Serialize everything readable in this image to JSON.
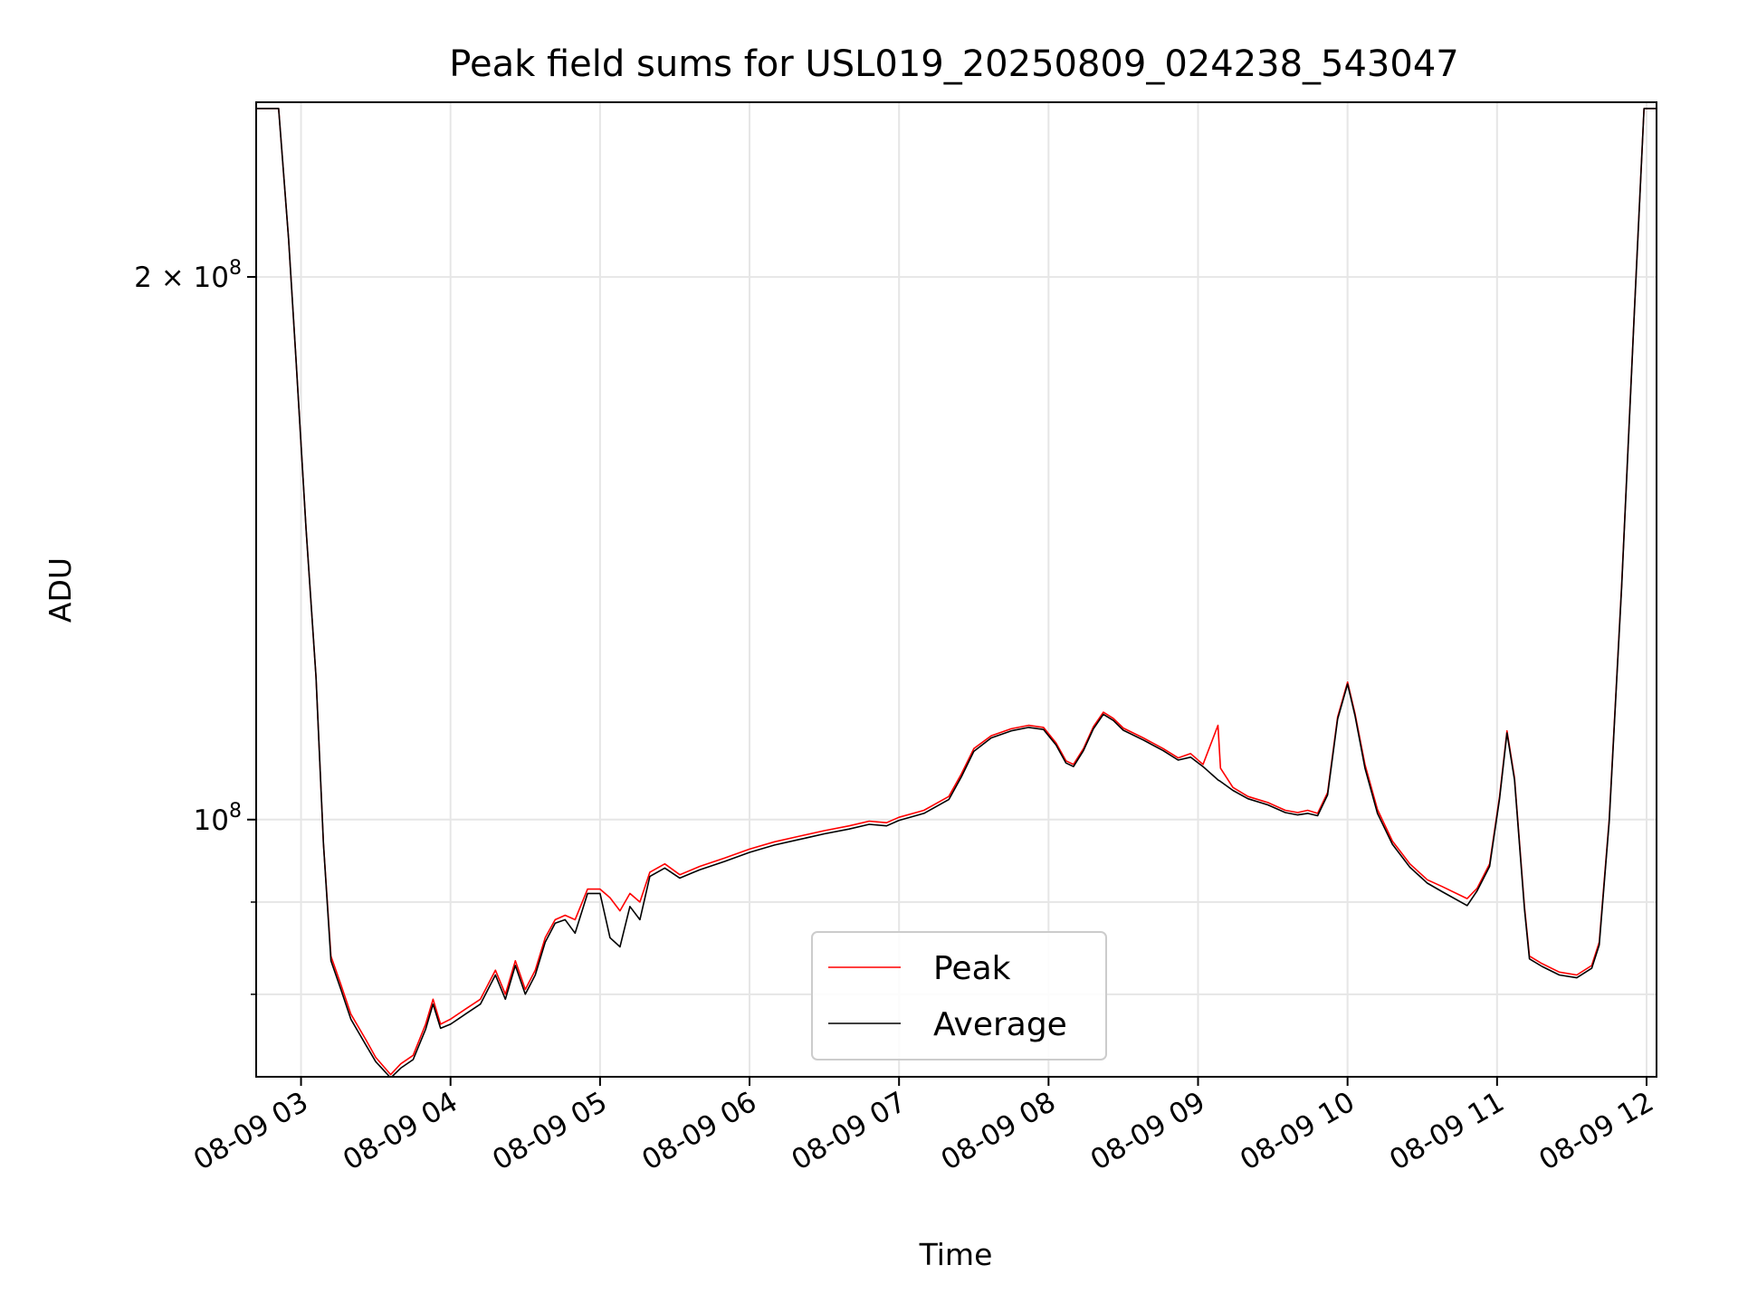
{
  "chart_data": {
    "type": "line",
    "title": "Peak field sums for USL019_20250809_024238_543047",
    "xlabel": "Time",
    "ylabel": "ADU",
    "yscale": "log",
    "grid": true,
    "legend_position": "lower-center",
    "xlim": [
      "2025-08-09 02:42",
      "2025-08-09 12:04"
    ],
    "ylim": [
      72000000,
      250000000
    ],
    "x_ticks": [
      "08-09 03",
      "08-09 04",
      "08-09 05",
      "08-09 06",
      "08-09 07",
      "08-09 08",
      "08-09 09",
      "08-09 10",
      "08-09 11",
      "08-09 12"
    ],
    "y_tick_labels": [
      {
        "value": 200000000,
        "base": "2 × 10",
        "exp": "8"
      },
      {
        "value": 100000000,
        "base": "10",
        "exp": "8"
      }
    ],
    "y_minor_ticks": [
      80000000,
      90000000
    ],
    "series": [
      {
        "name": "Peak",
        "color": "#ff0000",
        "points": [
          [
            "2025-08-09 02:42",
            248000000
          ],
          [
            "2025-08-09 02:51",
            248000000
          ],
          [
            "2025-08-09 02:55",
            210000000
          ],
          [
            "2025-08-09 02:58",
            180000000
          ],
          [
            "2025-08-09 03:02",
            145000000
          ],
          [
            "2025-08-09 03:06",
            120000000
          ],
          [
            "2025-08-09 03:09",
            97000000
          ],
          [
            "2025-08-09 03:12",
            84000000
          ],
          [
            "2025-08-09 03:16",
            81000000
          ],
          [
            "2025-08-09 03:20",
            78000000
          ],
          [
            "2025-08-09 03:26",
            75500000
          ],
          [
            "2025-08-09 03:30",
            73800000
          ],
          [
            "2025-08-09 03:36",
            72200000
          ],
          [
            "2025-08-09 03:40",
            73200000
          ],
          [
            "2025-08-09 03:45",
            74000000
          ],
          [
            "2025-08-09 03:50",
            77000000
          ],
          [
            "2025-08-09 03:53",
            79500000
          ],
          [
            "2025-08-09 03:56",
            77000000
          ],
          [
            "2025-08-09 04:00",
            77500000
          ],
          [
            "2025-08-09 04:06",
            78500000
          ],
          [
            "2025-08-09 04:12",
            79500000
          ],
          [
            "2025-08-09 04:18",
            82500000
          ],
          [
            "2025-08-09 04:22",
            80000000
          ],
          [
            "2025-08-09 04:26",
            83500000
          ],
          [
            "2025-08-09 04:30",
            80500000
          ],
          [
            "2025-08-09 04:34",
            82500000
          ],
          [
            "2025-08-09 04:38",
            86000000
          ],
          [
            "2025-08-09 04:42",
            88000000
          ],
          [
            "2025-08-09 04:46",
            88500000
          ],
          [
            "2025-08-09 04:50",
            88000000
          ],
          [
            "2025-08-09 04:55",
            91500000
          ],
          [
            "2025-08-09 05:00",
            91500000
          ],
          [
            "2025-08-09 05:04",
            90500000
          ],
          [
            "2025-08-09 05:08",
            89000000
          ],
          [
            "2025-08-09 05:12",
            91000000
          ],
          [
            "2025-08-09 05:16",
            90000000
          ],
          [
            "2025-08-09 05:20",
            93500000
          ],
          [
            "2025-08-09 05:26",
            94500000
          ],
          [
            "2025-08-09 05:32",
            93200000
          ],
          [
            "2025-08-09 05:40",
            94200000
          ],
          [
            "2025-08-09 05:50",
            95200000
          ],
          [
            "2025-08-09 06:00",
            96300000
          ],
          [
            "2025-08-09 06:10",
            97200000
          ],
          [
            "2025-08-09 06:20",
            97900000
          ],
          [
            "2025-08-09 06:30",
            98600000
          ],
          [
            "2025-08-09 06:40",
            99200000
          ],
          [
            "2025-08-09 06:48",
            99800000
          ],
          [
            "2025-08-09 06:55",
            99600000
          ],
          [
            "2025-08-09 07:00",
            100300000
          ],
          [
            "2025-08-09 07:10",
            101200000
          ],
          [
            "2025-08-09 07:20",
            103000000
          ],
          [
            "2025-08-09 07:25",
            106000000
          ],
          [
            "2025-08-09 07:30",
            109500000
          ],
          [
            "2025-08-09 07:37",
            111300000
          ],
          [
            "2025-08-09 07:45",
            112300000
          ],
          [
            "2025-08-09 07:52",
            112800000
          ],
          [
            "2025-08-09 07:58",
            112500000
          ],
          [
            "2025-08-09 08:03",
            110300000
          ],
          [
            "2025-08-09 08:07",
            107800000
          ],
          [
            "2025-08-09 08:10",
            107300000
          ],
          [
            "2025-08-09 08:14",
            109500000
          ],
          [
            "2025-08-09 08:18",
            112600000
          ],
          [
            "2025-08-09 08:22",
            114700000
          ],
          [
            "2025-08-09 08:26",
            113800000
          ],
          [
            "2025-08-09 08:30",
            112400000
          ],
          [
            "2025-08-09 08:38",
            111000000
          ],
          [
            "2025-08-09 08:46",
            109500000
          ],
          [
            "2025-08-09 08:52",
            108200000
          ],
          [
            "2025-08-09 08:57",
            108800000
          ],
          [
            "2025-08-09 09:02",
            107300000
          ],
          [
            "2025-08-09 09:08",
            112800000
          ],
          [
            "2025-08-09 09:09",
            106800000
          ],
          [
            "2025-08-09 09:14",
            104200000
          ],
          [
            "2025-08-09 09:20",
            103000000
          ],
          [
            "2025-08-09 09:28",
            102200000
          ],
          [
            "2025-08-09 09:35",
            101200000
          ],
          [
            "2025-08-09 09:40",
            100900000
          ],
          [
            "2025-08-09 09:44",
            101200000
          ],
          [
            "2025-08-09 09:48",
            100800000
          ],
          [
            "2025-08-09 09:52",
            103500000
          ],
          [
            "2025-08-09 09:56",
            114000000
          ],
          [
            "2025-08-09 10:00",
            119200000
          ],
          [
            "2025-08-09 10:03",
            114500000
          ],
          [
            "2025-08-09 10:07",
            107300000
          ],
          [
            "2025-08-09 10:12",
            101300000
          ],
          [
            "2025-08-09 10:18",
            97300000
          ],
          [
            "2025-08-09 10:25",
            94500000
          ],
          [
            "2025-08-09 10:32",
            92600000
          ],
          [
            "2025-08-09 10:38",
            91800000
          ],
          [
            "2025-08-09 10:48",
            90400000
          ],
          [
            "2025-08-09 10:52",
            91600000
          ],
          [
            "2025-08-09 10:57",
            94500000
          ],
          [
            "2025-08-09 11:01",
            103000000
          ],
          [
            "2025-08-09 11:04",
            112000000
          ],
          [
            "2025-08-09 11:07",
            105500000
          ],
          [
            "2025-08-09 11:11",
            89500000
          ],
          [
            "2025-08-09 11:13",
            84000000
          ],
          [
            "2025-08-09 11:18",
            83200000
          ],
          [
            "2025-08-09 11:25",
            82300000
          ],
          [
            "2025-08-09 11:32",
            82000000
          ],
          [
            "2025-08-09 11:38",
            83000000
          ],
          [
            "2025-08-09 11:41",
            85500000
          ],
          [
            "2025-08-09 11:45",
            100000000
          ],
          [
            "2025-08-09 11:50",
            135000000
          ],
          [
            "2025-08-09 11:55",
            190000000
          ],
          [
            "2025-08-09 11:59",
            248000000
          ],
          [
            "2025-08-09 12:04",
            248000000
          ]
        ]
      },
      {
        "name": "Average",
        "color": "#000000",
        "points": [
          [
            "2025-08-09 02:42",
            248000000
          ],
          [
            "2025-08-09 02:51",
            248000000
          ],
          [
            "2025-08-09 02:55",
            210000000
          ],
          [
            "2025-08-09 02:58",
            180000000
          ],
          [
            "2025-08-09 03:02",
            145000000
          ],
          [
            "2025-08-09 03:06",
            120000000
          ],
          [
            "2025-08-09 03:09",
            97000000
          ],
          [
            "2025-08-09 03:12",
            83500000
          ],
          [
            "2025-08-09 03:16",
            80500000
          ],
          [
            "2025-08-09 03:20",
            77500000
          ],
          [
            "2025-08-09 03:26",
            75000000
          ],
          [
            "2025-08-09 03:30",
            73400000
          ],
          [
            "2025-08-09 03:36",
            71900000
          ],
          [
            "2025-08-09 03:40",
            72800000
          ],
          [
            "2025-08-09 03:45",
            73600000
          ],
          [
            "2025-08-09 03:50",
            76500000
          ],
          [
            "2025-08-09 03:53",
            79000000
          ],
          [
            "2025-08-09 03:56",
            76600000
          ],
          [
            "2025-08-09 04:00",
            77000000
          ],
          [
            "2025-08-09 04:06",
            78000000
          ],
          [
            "2025-08-09 04:12",
            79000000
          ],
          [
            "2025-08-09 04:18",
            82000000
          ],
          [
            "2025-08-09 04:22",
            79500000
          ],
          [
            "2025-08-09 04:26",
            83000000
          ],
          [
            "2025-08-09 04:30",
            80000000
          ],
          [
            "2025-08-09 04:34",
            82000000
          ],
          [
            "2025-08-09 04:38",
            85500000
          ],
          [
            "2025-08-09 04:42",
            87600000
          ],
          [
            "2025-08-09 04:46",
            88000000
          ],
          [
            "2025-08-09 04:50",
            86500000
          ],
          [
            "2025-08-09 04:55",
            91000000
          ],
          [
            "2025-08-09 05:00",
            91000000
          ],
          [
            "2025-08-09 05:04",
            86000000
          ],
          [
            "2025-08-09 05:08",
            85000000
          ],
          [
            "2025-08-09 05:12",
            89500000
          ],
          [
            "2025-08-09 05:16",
            88000000
          ],
          [
            "2025-08-09 05:20",
            93000000
          ],
          [
            "2025-08-09 05:26",
            94000000
          ],
          [
            "2025-08-09 05:32",
            92800000
          ],
          [
            "2025-08-09 05:40",
            93800000
          ],
          [
            "2025-08-09 05:50",
            94800000
          ],
          [
            "2025-08-09 06:00",
            95900000
          ],
          [
            "2025-08-09 06:10",
            96800000
          ],
          [
            "2025-08-09 06:20",
            97500000
          ],
          [
            "2025-08-09 06:30",
            98200000
          ],
          [
            "2025-08-09 06:40",
            98800000
          ],
          [
            "2025-08-09 06:48",
            99400000
          ],
          [
            "2025-08-09 06:55",
            99200000
          ],
          [
            "2025-08-09 07:00",
            99900000
          ],
          [
            "2025-08-09 07:10",
            100800000
          ],
          [
            "2025-08-09 07:20",
            102600000
          ],
          [
            "2025-08-09 07:25",
            105600000
          ],
          [
            "2025-08-09 07:30",
            109100000
          ],
          [
            "2025-08-09 07:37",
            111000000
          ],
          [
            "2025-08-09 07:45",
            112000000
          ],
          [
            "2025-08-09 07:52",
            112500000
          ],
          [
            "2025-08-09 07:58",
            112200000
          ],
          [
            "2025-08-09 08:03",
            110000000
          ],
          [
            "2025-08-09 08:07",
            107500000
          ],
          [
            "2025-08-09 08:10",
            107000000
          ],
          [
            "2025-08-09 08:14",
            109200000
          ],
          [
            "2025-08-09 08:18",
            112300000
          ],
          [
            "2025-08-09 08:22",
            114400000
          ],
          [
            "2025-08-09 08:26",
            113500000
          ],
          [
            "2025-08-09 08:30",
            112100000
          ],
          [
            "2025-08-09 08:38",
            110700000
          ],
          [
            "2025-08-09 08:46",
            109200000
          ],
          [
            "2025-08-09 08:52",
            107900000
          ],
          [
            "2025-08-09 08:57",
            108300000
          ],
          [
            "2025-08-09 09:02",
            107000000
          ],
          [
            "2025-08-09 09:08",
            105200000
          ],
          [
            "2025-08-09 09:09",
            105000000
          ],
          [
            "2025-08-09 09:14",
            103800000
          ],
          [
            "2025-08-09 09:20",
            102700000
          ],
          [
            "2025-08-09 09:28",
            101900000
          ],
          [
            "2025-08-09 09:35",
            100900000
          ],
          [
            "2025-08-09 09:40",
            100600000
          ],
          [
            "2025-08-09 09:44",
            100800000
          ],
          [
            "2025-08-09 09:48",
            100500000
          ],
          [
            "2025-08-09 09:52",
            103200000
          ],
          [
            "2025-08-09 09:56",
            113700000
          ],
          [
            "2025-08-09 10:00",
            118900000
          ],
          [
            "2025-08-09 10:03",
            114200000
          ],
          [
            "2025-08-09 10:07",
            106800000
          ],
          [
            "2025-08-09 10:12",
            100800000
          ],
          [
            "2025-08-09 10:18",
            96900000
          ],
          [
            "2025-08-09 10:25",
            94100000
          ],
          [
            "2025-08-09 10:32",
            92200000
          ],
          [
            "2025-08-09 10:38",
            91200000
          ],
          [
            "2025-08-09 10:48",
            89600000
          ],
          [
            "2025-08-09 10:52",
            91300000
          ],
          [
            "2025-08-09 10:57",
            94200000
          ],
          [
            "2025-08-09 11:01",
            102700000
          ],
          [
            "2025-08-09 11:04",
            111700000
          ],
          [
            "2025-08-09 11:07",
            105200000
          ],
          [
            "2025-08-09 11:11",
            89200000
          ],
          [
            "2025-08-09 11:13",
            83700000
          ],
          [
            "2025-08-09 11:18",
            82900000
          ],
          [
            "2025-08-09 11:25",
            82000000
          ],
          [
            "2025-08-09 11:32",
            81700000
          ],
          [
            "2025-08-09 11:38",
            82700000
          ],
          [
            "2025-08-09 11:41",
            85200000
          ],
          [
            "2025-08-09 11:45",
            99700000
          ],
          [
            "2025-08-09 11:50",
            134700000
          ],
          [
            "2025-08-09 11:55",
            189700000
          ],
          [
            "2025-08-09 11:59",
            248000000
          ],
          [
            "2025-08-09 12:04",
            248000000
          ]
        ]
      }
    ]
  }
}
